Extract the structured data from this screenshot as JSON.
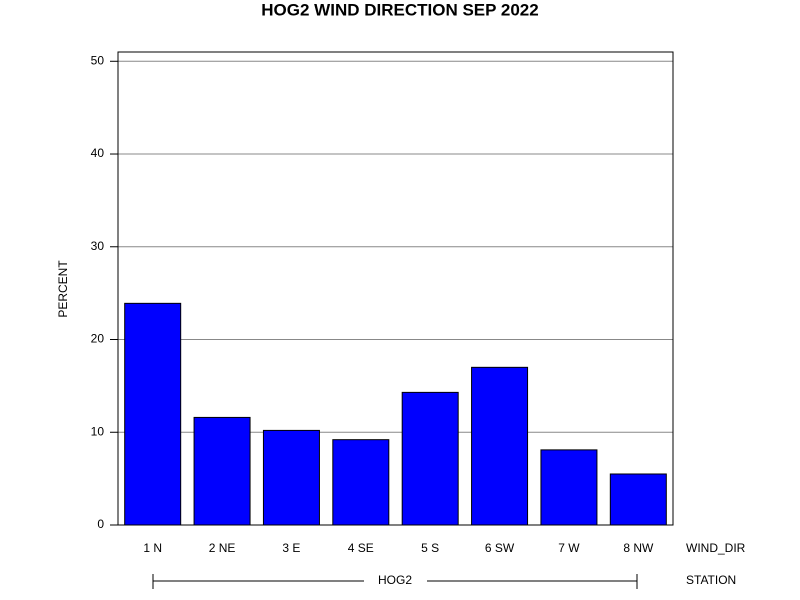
{
  "chart_data": {
    "type": "bar",
    "title": "HOG2 WIND DIRECTION SEP 2022",
    "categories": [
      "1 N",
      "2 NE",
      "3 E",
      "4 SE",
      "5 S",
      "6 SW",
      "7 W",
      "8 NW"
    ],
    "values": [
      23.9,
      11.6,
      10.2,
      9.2,
      14.3,
      17.0,
      8.1,
      5.5
    ],
    "color": "#0000ff",
    "ylim": [
      0,
      51
    ],
    "yticks": [
      0,
      10,
      20,
      30,
      40,
      50
    ],
    "grid": true,
    "y_label": "PERCENT",
    "x_label": "WIND_DIR",
    "group_label": "STATION",
    "group": "HOG2"
  }
}
